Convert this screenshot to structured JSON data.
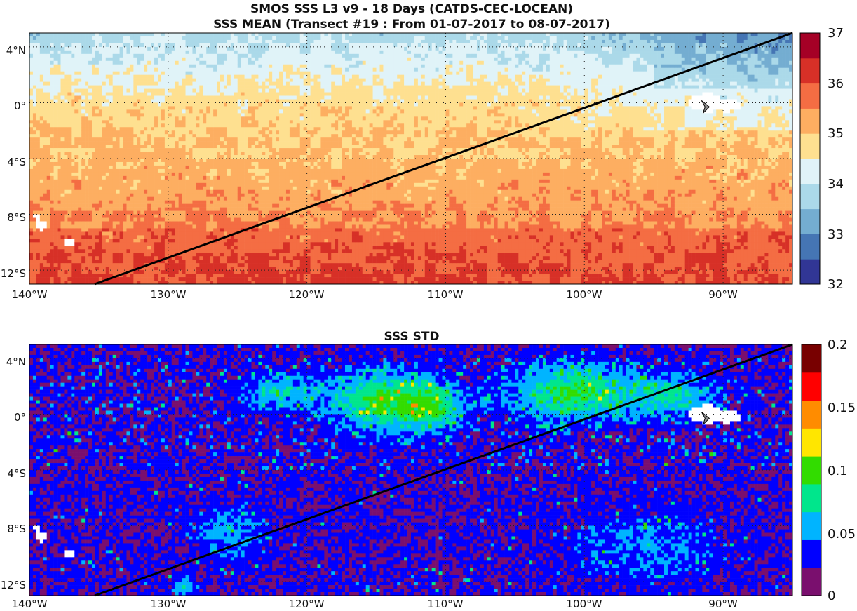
{
  "figure": {
    "title_line1": "SMOS SSS L3 v9 - 18 Days (CATDS-CEC-LOCEAN)",
    "title_line2": "SSS MEAN (Transect #19 : From 01-07-2017 to 08-07-2017)",
    "title_std": "SSS STD"
  },
  "map": {
    "lon_ticks": [
      "140°W",
      "130°W",
      "120°W",
      "110°W",
      "100°W",
      "90°W"
    ],
    "lat_ticks": [
      "4°N",
      "0°",
      "4°S",
      "8°S",
      "12°S"
    ],
    "lon_range": [
      -140,
      -85
    ],
    "lat_range": [
      -13,
      5
    ],
    "transect": {
      "start": {
        "lon": -135.3,
        "lat": -13
      },
      "end": {
        "lon": -85,
        "lat": 5
      }
    },
    "islands": [
      "Galápagos Islands",
      "Marquesas Islands"
    ]
  },
  "mean_colorbar": {
    "ticks": [
      "37",
      "36",
      "35",
      "34",
      "33",
      "32"
    ],
    "range": [
      32,
      37
    ],
    "colors": [
      "#313695",
      "#4575b4",
      "#74add1",
      "#abd9e9",
      "#e0f3f8",
      "#fee090",
      "#fdae61",
      "#f46d43",
      "#d73027",
      "#a50026"
    ]
  },
  "std_colorbar": {
    "ticks": [
      "0.2",
      "0.15",
      "0.1",
      "0.05",
      "0"
    ],
    "range": [
      0,
      0.2
    ],
    "colors": [
      "#7a0f6e",
      "#0000ff",
      "#00b4ff",
      "#00e68c",
      "#32dc00",
      "#ffe600",
      "#ff8c00",
      "#ff0000",
      "#780000"
    ]
  }
}
